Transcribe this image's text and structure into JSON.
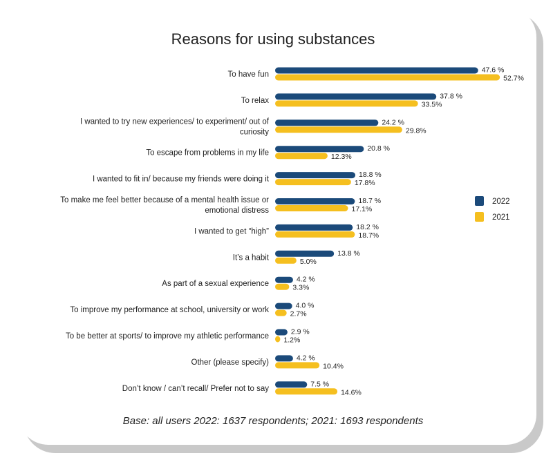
{
  "chart_data": {
    "type": "bar",
    "orientation": "horizontal",
    "title": "Reasons for using substances",
    "footnote": "Base: all users 2022: 1637 respondents; 2021: 1693 respondents",
    "categories": [
      [
        "To have fun"
      ],
      [
        "To relax"
      ],
      [
        "I wanted to try new experiences/ to experiment/ out of",
        "curiosity"
      ],
      [
        "To escape from problems in my life"
      ],
      [
        "I wanted to fit in/ because my friends were doing it"
      ],
      [
        "To make me feel better because of a mental health issue or",
        "emotional distress"
      ],
      [
        "I wanted to get “high”"
      ],
      [
        "It’s a habit"
      ],
      [
        "As part of a sexual experience"
      ],
      [
        "To improve my performance at school, university or work"
      ],
      [
        "To be better at sports/ to improve my athletic performance"
      ],
      [
        "Other (please specify)"
      ],
      [
        "Don’t know / can’t recall/ Prefer not to say"
      ]
    ],
    "series": [
      {
        "name": "2022",
        "color": "#1b4a7a",
        "values": [
          47.6,
          37.8,
          24.2,
          20.8,
          18.8,
          18.7,
          18.2,
          13.8,
          4.2,
          4.0,
          2.9,
          4.2,
          7.5
        ],
        "labels": [
          "47.6 %",
          "37.8 %",
          "24.2 %",
          "20.8 %",
          "18.8 %",
          "18.7 %",
          "18.2 %",
          "13.8 %",
          "4.2 %",
          "4.0 %",
          "2.9 %",
          "4.2 %",
          "7.5 %"
        ]
      },
      {
        "name": "2021",
        "color": "#f5bf1f",
        "values": [
          52.7,
          33.5,
          29.8,
          12.3,
          17.8,
          17.1,
          18.7,
          5.0,
          3.3,
          2.7,
          1.2,
          10.4,
          14.6
        ],
        "labels": [
          "52.7%",
          "33.5%",
          "29.8%",
          "12.3%",
          "17.8%",
          "17.1%",
          "18.7%",
          "5.0%",
          "3.3%",
          "2.7%",
          "1.2%",
          "10.4%",
          "14.6%"
        ]
      }
    ],
    "legend_position": "right",
    "grid": false
  }
}
